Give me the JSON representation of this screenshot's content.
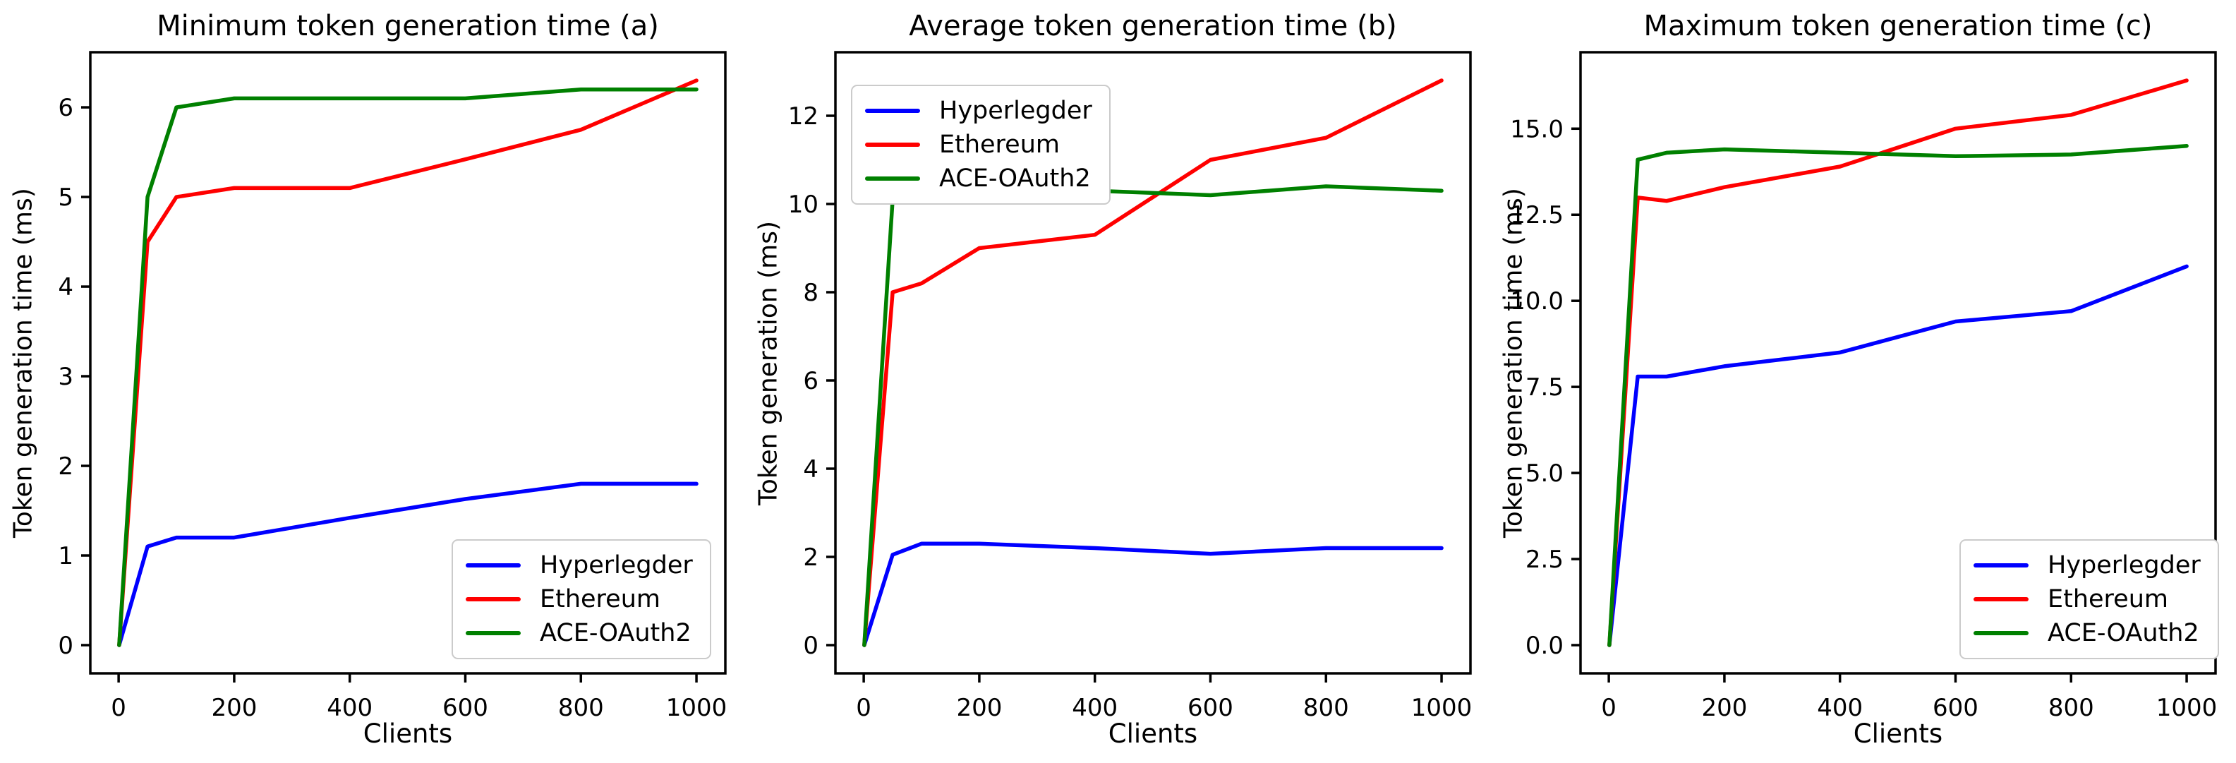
{
  "figure": {
    "background": "#ffffff",
    "axis_color": "#000000",
    "legend_border_color": "#cbcbcb",
    "series_colors": {
      "hyperledger": "#0000ff",
      "ethereum": "#ff0000",
      "ace_oauth2": "#008000"
    }
  },
  "chart_data": [
    {
      "type": "line",
      "title": "Minimum token generation time (a)",
      "xlabel": "Clients",
      "ylabel": "Token generation time (ms)",
      "x": [
        1,
        50,
        100,
        200,
        400,
        600,
        800,
        1000
      ],
      "series": [
        {
          "name": "Hyperlegder",
          "color": "#0000ff",
          "values": [
            0,
            1.1,
            1.2,
            1.2,
            1.42,
            1.63,
            1.8,
            1.8
          ]
        },
        {
          "name": "Ethereum",
          "color": "#ff0000",
          "values": [
            0,
            4.5,
            5.0,
            5.1,
            5.1,
            5.42,
            5.75,
            6.3
          ]
        },
        {
          "name": "ACE-OAuth2",
          "color": "#008000",
          "values": [
            0,
            5.0,
            6.0,
            6.1,
            6.1,
            6.1,
            6.2,
            6.2
          ]
        }
      ],
      "xticks": [
        0,
        200,
        400,
        600,
        800,
        1000
      ],
      "xtick_labels": [
        "0",
        "200",
        "400",
        "600",
        "800",
        "1000"
      ],
      "yticks": [
        0,
        1,
        2,
        3,
        4,
        5,
        6
      ],
      "ytick_labels": [
        "0",
        "1",
        "2",
        "3",
        "4",
        "5",
        "6"
      ],
      "xlim": [
        -49,
        1050
      ],
      "ylim": [
        -0.315,
        6.615
      ],
      "grid": false,
      "legend_position": "lower right",
      "legend_pos": {
        "left": 640,
        "top": 764
      }
    },
    {
      "type": "line",
      "title": "Average token generation time (b)",
      "xlabel": "Clients",
      "ylabel": "Token generation (ms)",
      "x": [
        1,
        50,
        100,
        200,
        400,
        600,
        800,
        1000
      ],
      "series": [
        {
          "name": "Hyperlegder",
          "color": "#0000ff",
          "values": [
            0,
            2.05,
            2.3,
            2.3,
            2.2,
            2.07,
            2.2,
            2.2
          ]
        },
        {
          "name": "Ethereum",
          "color": "#ff0000",
          "values": [
            0,
            8.0,
            8.2,
            9.0,
            9.3,
            11.0,
            11.5,
            12.8
          ]
        },
        {
          "name": "ACE-OAuth2",
          "color": "#008000",
          "values": [
            0,
            10.1,
            10.2,
            10.05,
            10.3,
            10.2,
            10.4,
            10.3
          ]
        }
      ],
      "xticks": [
        0,
        200,
        400,
        600,
        800,
        1000
      ],
      "xtick_labels": [
        "0",
        "200",
        "400",
        "600",
        "800",
        "1000"
      ],
      "yticks": [
        0,
        2,
        4,
        6,
        8,
        10,
        12
      ],
      "ytick_labels": [
        "0",
        "2",
        "4",
        "6",
        "8",
        "10",
        "12"
      ],
      "xlim": [
        -49,
        1050
      ],
      "ylim": [
        -0.64,
        13.44
      ],
      "grid": false,
      "legend_position": "upper left",
      "legend_pos": {
        "left": 150,
        "top": 120
      }
    },
    {
      "type": "line",
      "title": "Maximum token generation time (c)",
      "xlabel": "Clients",
      "ylabel": "Token generation time (ms)",
      "x": [
        1,
        50,
        100,
        200,
        400,
        600,
        800,
        1000
      ],
      "series": [
        {
          "name": "Hyperlegder",
          "color": "#0000ff",
          "values": [
            0,
            7.8,
            7.8,
            8.1,
            8.5,
            9.4,
            9.7,
            11.0
          ]
        },
        {
          "name": "Ethereum",
          "color": "#ff0000",
          "values": [
            0,
            13.0,
            12.9,
            13.3,
            13.9,
            15.0,
            15.4,
            16.4
          ]
        },
        {
          "name": "ACE-OAuth2",
          "color": "#008000",
          "values": [
            0,
            14.1,
            14.3,
            14.4,
            14.3,
            14.2,
            14.25,
            14.5
          ]
        }
      ],
      "xticks": [
        0,
        200,
        400,
        600,
        800,
        1000
      ],
      "xtick_labels": [
        "0",
        "200",
        "400",
        "600",
        "800",
        "1000"
      ],
      "yticks": [
        0,
        2.5,
        5,
        7.5,
        10,
        12.5,
        15
      ],
      "ytick_labels": [
        "0.0",
        "2.5",
        "5.0",
        "7.5",
        "10.0",
        "12.5",
        "15.0"
      ],
      "xlim": [
        -49,
        1050
      ],
      "ylim": [
        -0.82,
        17.22
      ],
      "grid": false,
      "legend_position": "lower right",
      "legend_pos": {
        "left": 665,
        "top": 764
      }
    }
  ]
}
